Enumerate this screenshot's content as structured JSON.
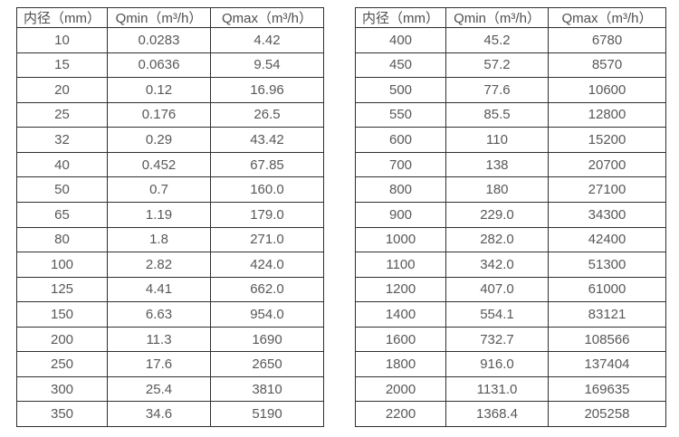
{
  "colors": {
    "background": "#ffffff",
    "border": "#303030",
    "header_text": "#4f4f4f",
    "cell_text": "#585858"
  },
  "chart_data": [
    {
      "type": "table",
      "title": "",
      "columns": [
        "内径（mm）",
        "Qmin（m³/h）",
        "Qmax（m³/h）"
      ],
      "rows": [
        [
          "10",
          "0.0283",
          "4.42"
        ],
        [
          "15",
          "0.0636",
          "9.54"
        ],
        [
          "20",
          "0.12",
          "16.96"
        ],
        [
          "25",
          "0.176",
          "26.5"
        ],
        [
          "32",
          "0.29",
          "43.42"
        ],
        [
          "40",
          "0.452",
          "67.85"
        ],
        [
          "50",
          "0.7",
          "160.0"
        ],
        [
          "65",
          "1.19",
          "179.0"
        ],
        [
          "80",
          "1.8",
          "271.0"
        ],
        [
          "100",
          "2.82",
          "424.0"
        ],
        [
          "125",
          "4.41",
          "662.0"
        ],
        [
          "150",
          "6.63",
          "954.0"
        ],
        [
          "200",
          "11.3",
          "1690"
        ],
        [
          "250",
          "17.6",
          "2650"
        ],
        [
          "300",
          "25.4",
          "3810"
        ],
        [
          "350",
          "34.6",
          "5190"
        ]
      ]
    },
    {
      "type": "table",
      "title": "",
      "columns": [
        "内径（mm）",
        "Qmin（m³/h）",
        "Qmax（m³/h）"
      ],
      "rows": [
        [
          "400",
          "45.2",
          "6780"
        ],
        [
          "450",
          "57.2",
          "8570"
        ],
        [
          "500",
          "77.6",
          "10600"
        ],
        [
          "550",
          "85.5",
          "12800"
        ],
        [
          "600",
          "110",
          "15200"
        ],
        [
          "700",
          "138",
          "20700"
        ],
        [
          "800",
          "180",
          "27100"
        ],
        [
          "900",
          "229.0",
          "34300"
        ],
        [
          "1000",
          "282.0",
          "42400"
        ],
        [
          "1100",
          "342.0",
          "51300"
        ],
        [
          "1200",
          "407.0",
          "61000"
        ],
        [
          "1400",
          "554.1",
          "83121"
        ],
        [
          "1600",
          "732.7",
          "108566"
        ],
        [
          "1800",
          "916.0",
          "137404"
        ],
        [
          "2000",
          "1131.0",
          "169635"
        ],
        [
          "2200",
          "1368.4",
          "205258"
        ]
      ]
    }
  ]
}
